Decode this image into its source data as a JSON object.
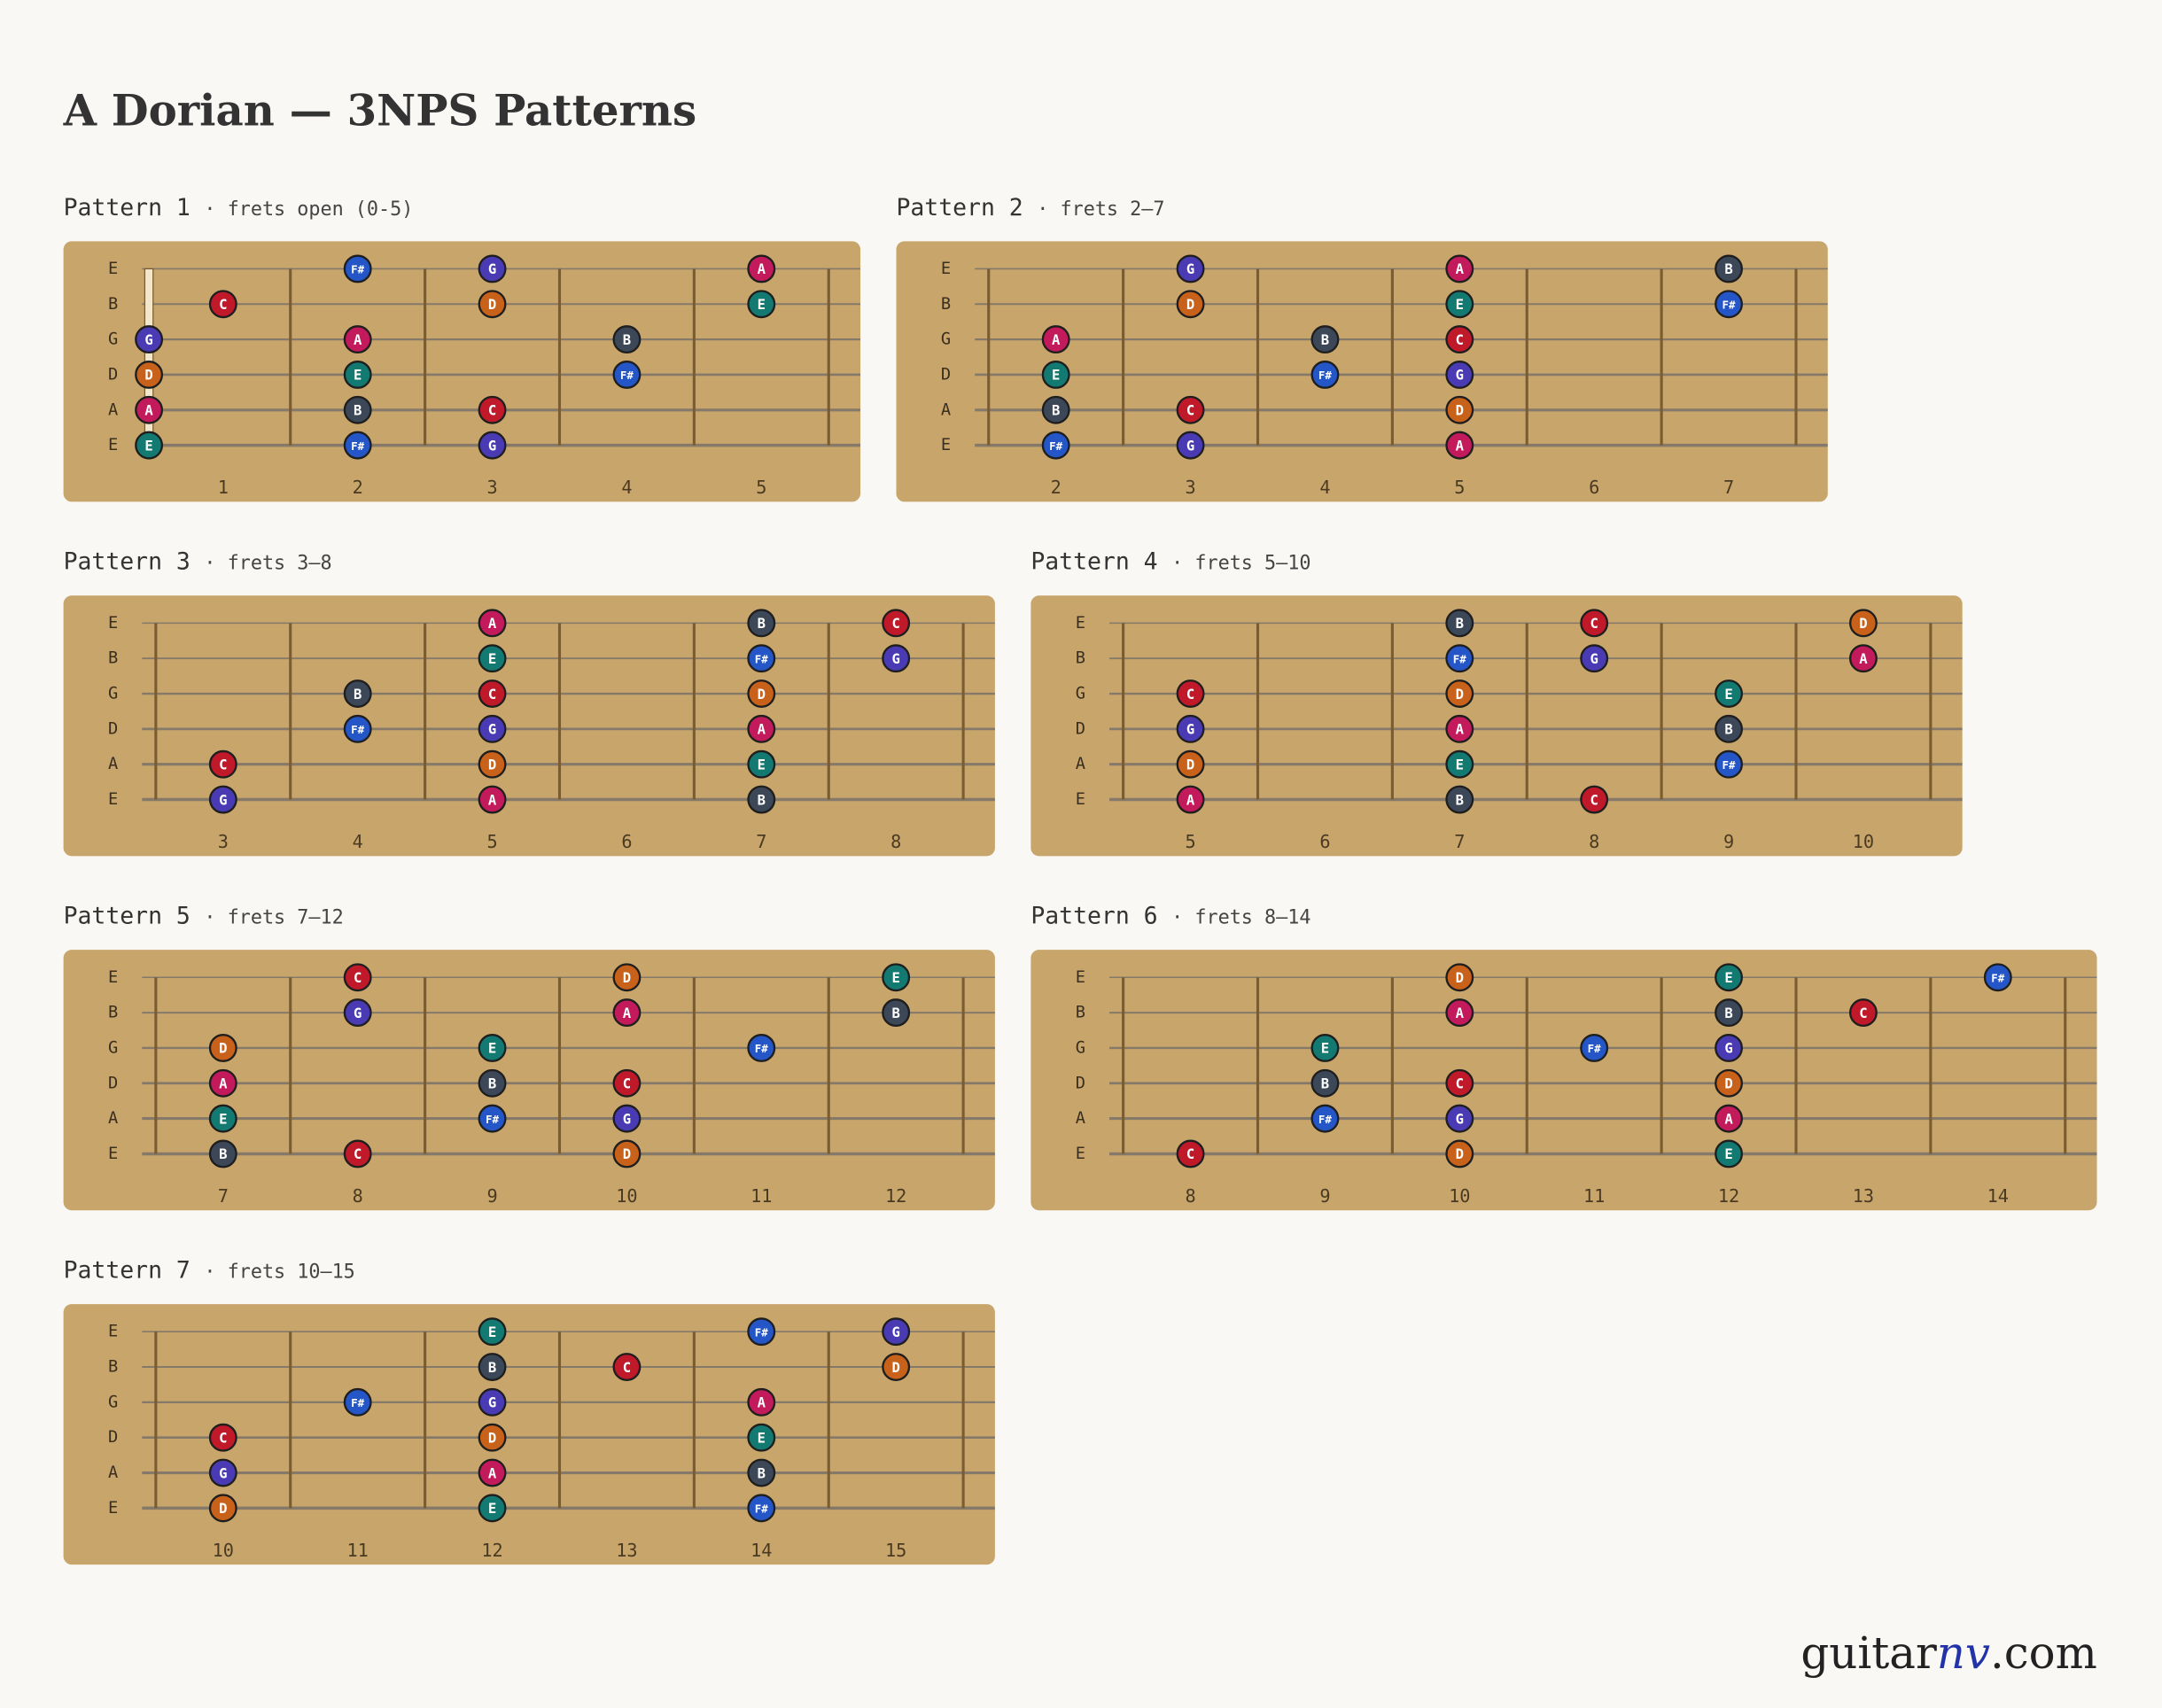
{
  "title": "A Dorian — 3NPS Patterns",
  "note_colors": {
    "C": "#c0192a",
    "D": "#c8621a",
    "E": "#137a72",
    "F#": "#2456c8",
    "G": "#4a3bb5",
    "A": "#c21a5a",
    "B": "#3c4858"
  },
  "patterns": [
    {
      "title": "Pattern 1",
      "range": "· frets open (0-5)",
      "frets": [
        1,
        2,
        3,
        4,
        5
      ],
      "strings": [
        {
          "name": "E",
          "notes": [
            {
              "fret": 2,
              "note": "F#"
            },
            {
              "fret": 3,
              "note": "G"
            },
            {
              "fret": 5,
              "note": "A"
            }
          ]
        },
        {
          "name": "B",
          "notes": [
            {
              "fret": 1,
              "note": "C"
            },
            {
              "fret": 3,
              "note": "D"
            },
            {
              "fret": 5,
              "note": "E"
            }
          ]
        },
        {
          "name": "G",
          "notes": [
            {
              "fret": 0,
              "note": "G"
            },
            {
              "fret": 2,
              "note": "A"
            },
            {
              "fret": 4,
              "note": "B"
            }
          ]
        },
        {
          "name": "D",
          "notes": [
            {
              "fret": 0,
              "note": "D"
            },
            {
              "fret": 2,
              "note": "E"
            },
            {
              "fret": 4,
              "note": "F#"
            }
          ]
        },
        {
          "name": "A",
          "notes": [
            {
              "fret": 0,
              "note": "A"
            },
            {
              "fret": 2,
              "note": "B"
            },
            {
              "fret": 3,
              "note": "C"
            }
          ]
        },
        {
          "name": "E",
          "notes": [
            {
              "fret": 0,
              "note": "E"
            },
            {
              "fret": 2,
              "note": "F#"
            },
            {
              "fret": 3,
              "note": "G"
            }
          ]
        }
      ]
    },
    {
      "title": "Pattern 2",
      "range": "· frets 2–7",
      "frets": [
        2,
        3,
        4,
        5,
        6,
        7
      ],
      "strings": [
        {
          "name": "E",
          "notes": [
            {
              "fret": 3,
              "note": "G"
            },
            {
              "fret": 5,
              "note": "A"
            },
            {
              "fret": 7,
              "note": "B"
            }
          ]
        },
        {
          "name": "B",
          "notes": [
            {
              "fret": 3,
              "note": "D"
            },
            {
              "fret": 5,
              "note": "E"
            },
            {
              "fret": 7,
              "note": "F#"
            }
          ]
        },
        {
          "name": "G",
          "notes": [
            {
              "fret": 2,
              "note": "A"
            },
            {
              "fret": 4,
              "note": "B"
            },
            {
              "fret": 5,
              "note": "C"
            }
          ]
        },
        {
          "name": "D",
          "notes": [
            {
              "fret": 2,
              "note": "E"
            },
            {
              "fret": 4,
              "note": "F#"
            },
            {
              "fret": 5,
              "note": "G"
            }
          ]
        },
        {
          "name": "A",
          "notes": [
            {
              "fret": 2,
              "note": "B"
            },
            {
              "fret": 3,
              "note": "C"
            },
            {
              "fret": 5,
              "note": "D"
            }
          ]
        },
        {
          "name": "E",
          "notes": [
            {
              "fret": 2,
              "note": "F#"
            },
            {
              "fret": 3,
              "note": "G"
            },
            {
              "fret": 5,
              "note": "A"
            }
          ]
        }
      ]
    },
    {
      "title": "Pattern 3",
      "range": "· frets 3–8",
      "frets": [
        3,
        4,
        5,
        6,
        7,
        8
      ],
      "strings": [
        {
          "name": "E",
          "notes": [
            {
              "fret": 5,
              "note": "A"
            },
            {
              "fret": 7,
              "note": "B"
            },
            {
              "fret": 8,
              "note": "C"
            }
          ]
        },
        {
          "name": "B",
          "notes": [
            {
              "fret": 5,
              "note": "E"
            },
            {
              "fret": 7,
              "note": "F#"
            },
            {
              "fret": 8,
              "note": "G"
            }
          ]
        },
        {
          "name": "G",
          "notes": [
            {
              "fret": 4,
              "note": "B"
            },
            {
              "fret": 5,
              "note": "C"
            },
            {
              "fret": 7,
              "note": "D"
            }
          ]
        },
        {
          "name": "D",
          "notes": [
            {
              "fret": 4,
              "note": "F#"
            },
            {
              "fret": 5,
              "note": "G"
            },
            {
              "fret": 7,
              "note": "A"
            }
          ]
        },
        {
          "name": "A",
          "notes": [
            {
              "fret": 3,
              "note": "C"
            },
            {
              "fret": 5,
              "note": "D"
            },
            {
              "fret": 7,
              "note": "E"
            }
          ]
        },
        {
          "name": "E",
          "notes": [
            {
              "fret": 3,
              "note": "G"
            },
            {
              "fret": 5,
              "note": "A"
            },
            {
              "fret": 7,
              "note": "B"
            }
          ]
        }
      ]
    },
    {
      "title": "Pattern 4",
      "range": "· frets 5–10",
      "frets": [
        5,
        6,
        7,
        8,
        9,
        10
      ],
      "strings": [
        {
          "name": "E",
          "notes": [
            {
              "fret": 7,
              "note": "B"
            },
            {
              "fret": 8,
              "note": "C"
            },
            {
              "fret": 10,
              "note": "D"
            }
          ]
        },
        {
          "name": "B",
          "notes": [
            {
              "fret": 7,
              "note": "F#"
            },
            {
              "fret": 8,
              "note": "G"
            },
            {
              "fret": 10,
              "note": "A"
            }
          ]
        },
        {
          "name": "G",
          "notes": [
            {
              "fret": 5,
              "note": "C"
            },
            {
              "fret": 7,
              "note": "D"
            },
            {
              "fret": 9,
              "note": "E"
            }
          ]
        },
        {
          "name": "D",
          "notes": [
            {
              "fret": 5,
              "note": "G"
            },
            {
              "fret": 7,
              "note": "A"
            },
            {
              "fret": 9,
              "note": "B"
            }
          ]
        },
        {
          "name": "A",
          "notes": [
            {
              "fret": 5,
              "note": "D"
            },
            {
              "fret": 7,
              "note": "E"
            },
            {
              "fret": 9,
              "note": "F#"
            }
          ]
        },
        {
          "name": "E",
          "notes": [
            {
              "fret": 5,
              "note": "A"
            },
            {
              "fret": 7,
              "note": "B"
            },
            {
              "fret": 8,
              "note": "C"
            }
          ]
        }
      ]
    },
    {
      "title": "Pattern 5",
      "range": "· frets 7–12",
      "frets": [
        7,
        8,
        9,
        10,
        11,
        12
      ],
      "strings": [
        {
          "name": "E",
          "notes": [
            {
              "fret": 8,
              "note": "C"
            },
            {
              "fret": 10,
              "note": "D"
            },
            {
              "fret": 12,
              "note": "E"
            }
          ]
        },
        {
          "name": "B",
          "notes": [
            {
              "fret": 8,
              "note": "G"
            },
            {
              "fret": 10,
              "note": "A"
            },
            {
              "fret": 12,
              "note": "B"
            }
          ]
        },
        {
          "name": "G",
          "notes": [
            {
              "fret": 7,
              "note": "D"
            },
            {
              "fret": 9,
              "note": "E"
            },
            {
              "fret": 11,
              "note": "F#"
            }
          ]
        },
        {
          "name": "D",
          "notes": [
            {
              "fret": 7,
              "note": "A"
            },
            {
              "fret": 9,
              "note": "B"
            },
            {
              "fret": 10,
              "note": "C"
            }
          ]
        },
        {
          "name": "A",
          "notes": [
            {
              "fret": 7,
              "note": "E"
            },
            {
              "fret": 9,
              "note": "F#"
            },
            {
              "fret": 10,
              "note": "G"
            }
          ]
        },
        {
          "name": "E",
          "notes": [
            {
              "fret": 7,
              "note": "B"
            },
            {
              "fret": 8,
              "note": "C"
            },
            {
              "fret": 10,
              "note": "D"
            }
          ]
        }
      ]
    },
    {
      "title": "Pattern 6",
      "range": "· frets 8–14",
      "frets": [
        8,
        9,
        10,
        11,
        12,
        13,
        14
      ],
      "strings": [
        {
          "name": "E",
          "notes": [
            {
              "fret": 10,
              "note": "D"
            },
            {
              "fret": 12,
              "note": "E"
            },
            {
              "fret": 14,
              "note": "F#"
            }
          ]
        },
        {
          "name": "B",
          "notes": [
            {
              "fret": 10,
              "note": "A"
            },
            {
              "fret": 12,
              "note": "B"
            },
            {
              "fret": 13,
              "note": "C"
            }
          ]
        },
        {
          "name": "G",
          "notes": [
            {
              "fret": 9,
              "note": "E"
            },
            {
              "fret": 11,
              "note": "F#"
            },
            {
              "fret": 12,
              "note": "G"
            }
          ]
        },
        {
          "name": "D",
          "notes": [
            {
              "fret": 9,
              "note": "B"
            },
            {
              "fret": 10,
              "note": "C"
            },
            {
              "fret": 12,
              "note": "D"
            }
          ]
        },
        {
          "name": "A",
          "notes": [
            {
              "fret": 9,
              "note": "F#"
            },
            {
              "fret": 10,
              "note": "G"
            },
            {
              "fret": 12,
              "note": "A"
            }
          ]
        },
        {
          "name": "E",
          "notes": [
            {
              "fret": 8,
              "note": "C"
            },
            {
              "fret": 10,
              "note": "D"
            },
            {
              "fret": 12,
              "note": "E"
            }
          ]
        }
      ]
    },
    {
      "title": "Pattern 7",
      "range": "· frets 10–15",
      "frets": [
        10,
        11,
        12,
        13,
        14,
        15
      ],
      "strings": [
        {
          "name": "E",
          "notes": [
            {
              "fret": 12,
              "note": "E"
            },
            {
              "fret": 14,
              "note": "F#"
            },
            {
              "fret": 15,
              "note": "G"
            }
          ]
        },
        {
          "name": "B",
          "notes": [
            {
              "fret": 12,
              "note": "B"
            },
            {
              "fret": 13,
              "note": "C"
            },
            {
              "fret": 15,
              "note": "D"
            }
          ]
        },
        {
          "name": "G",
          "notes": [
            {
              "fret": 11,
              "note": "F#"
            },
            {
              "fret": 12,
              "note": "G"
            },
            {
              "fret": 14,
              "note": "A"
            }
          ]
        },
        {
          "name": "D",
          "notes": [
            {
              "fret": 10,
              "note": "C"
            },
            {
              "fret": 12,
              "note": "D"
            },
            {
              "fret": 14,
              "note": "E"
            }
          ]
        },
        {
          "name": "A",
          "notes": [
            {
              "fret": 10,
              "note": "G"
            },
            {
              "fret": 12,
              "note": "A"
            },
            {
              "fret": 14,
              "note": "B"
            }
          ]
        },
        {
          "name": "E",
          "notes": [
            {
              "fret": 10,
              "note": "D"
            },
            {
              "fret": 12,
              "note": "E"
            },
            {
              "fret": 14,
              "note": "F#"
            }
          ]
        }
      ]
    }
  ],
  "footer": {
    "prefix": "guitar",
    "brand": "nv",
    "suffix": ".com"
  }
}
